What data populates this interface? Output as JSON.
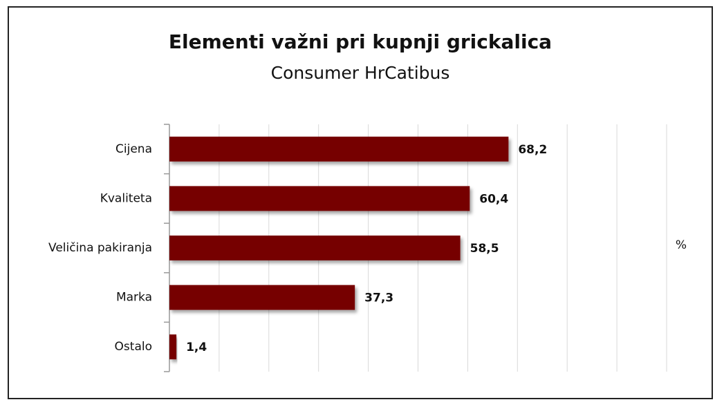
{
  "chart_data": {
    "type": "bar",
    "orientation": "horizontal",
    "title": "Elementi važni pri kupnji grickalica",
    "subtitle": "Consumer HrCatibus",
    "xlabel": "%",
    "categories": [
      "Cijena",
      "Kvaliteta",
      "Veličina pakiranja",
      "Marka",
      "Ostalo"
    ],
    "values": [
      68.2,
      60.4,
      58.5,
      37.3,
      1.4
    ],
    "value_labels": [
      "68,2",
      "60,4",
      "58,5",
      "37,3",
      "1,4"
    ],
    "color": "#760000",
    "xlim": [
      0,
      100
    ],
    "xticks": [
      0,
      10,
      20,
      30,
      40,
      50,
      60,
      70,
      80,
      90,
      100
    ],
    "grid": true
  }
}
